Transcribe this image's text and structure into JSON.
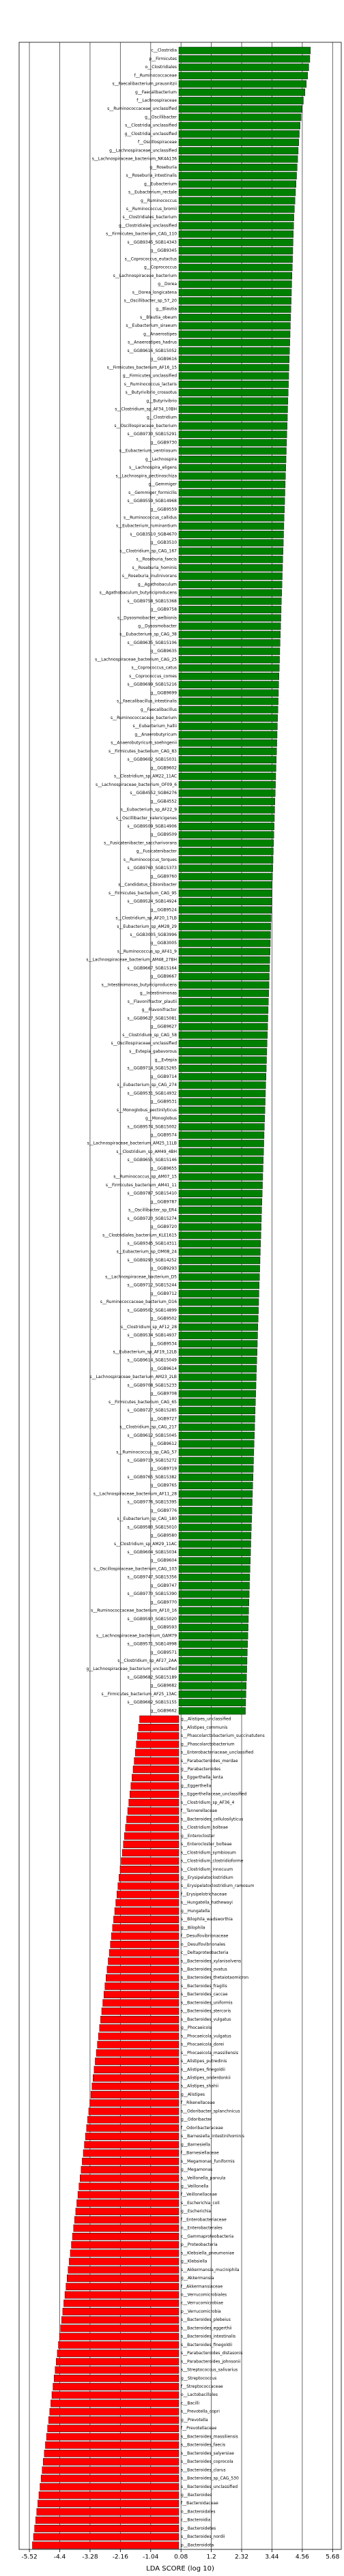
{
  "chart_data": {
    "type": "barh",
    "xlabel": "LDA SCORE (log 10)",
    "xlim": [
      -5.9,
      6.0
    ],
    "xticks": [
      -5.52,
      -4.4,
      -3.28,
      -2.16,
      -1.04,
      0.08,
      1.2,
      2.32,
      3.44,
      4.56,
      5.68
    ],
    "grid": true,
    "color_positive": "#008000",
    "color_negative": "#ff0000",
    "categories": [
      "c__Clostridia",
      "p__Firmicutes",
      "o__Clostridiales",
      "f__Ruminococcaceae",
      "s__Faecalibacterium_prausnitzii",
      "g__Faecalibacterium",
      "f__Lachnospiraceae",
      "s__Ruminococcaceae_unclassified",
      "g__Oscillibacter",
      "s__Clostridia_unclassified",
      "g__Clostridia_unclassified",
      "f__Oscillospiraceae",
      "g__Lachnospiraceae_unclassified",
      "s__Lachnospiraceae_bacterium_NK4A136",
      "g__Roseburia",
      "s__Roseburia_intestinalis",
      "g__Eubacterium",
      "s__Eubacterium_rectale",
      "g__Ruminococcus",
      "s__Ruminococcus_bromii",
      "s__Clostridiales_bacterium",
      "g__Clostridiales_unclassified",
      "s__Firmicutes_bacterium_CAG_110",
      "s__GGB9345_SGB14343",
      "g__GGB9345",
      "s__Coprococcus_eutactus",
      "g__Coprococcus",
      "s__Lachnospiraceae_bacterium",
      "g__Dorea",
      "s__Dorea_longicatena",
      "s__Oscillibacter_sp_57_20",
      "g__Blautia",
      "s__Blautia_obeum",
      "s__Eubacterium_siraeum",
      "g__Anaerostipes",
      "s__Anaerostipes_hadrus",
      "s__GGB9616_SGB15052",
      "g__GGB9616",
      "s__Firmicutes_bacterium_AF16_15",
      "g__Firmicutes_unclassified",
      "s__Ruminococcus_lactaris",
      "s__Butyrivibrio_crossotus",
      "g__Butyrivibrio",
      "s__Clostridium_sp_AF34_10BH",
      "g__Clostridium",
      "s__Oscillospiraceae_bacterium",
      "s__GGB9730_SGB15291",
      "g__GGB9730",
      "s__Eubacterium_ventriosum",
      "g__Lachnospira",
      "s__Lachnospira_eligens",
      "s__Lachnospira_pectinoschiza",
      "g__Gemmiger",
      "s__Gemmiger_formicilis",
      "s__GGB9559_SGB14968",
      "g__GGB9559",
      "s__Ruminococcus_callidus",
      "s__Eubacterium_ruminantium",
      "s__GGB3510_SGB4670",
      "g__GGB3510",
      "s__Clostridium_sp_CAG_167",
      "s__Roseburia_faecis",
      "s__Roseburia_hominis",
      "s__Roseburia_inulinivorans",
      "g__Agathobaculum",
      "s__Agathobaculum_butyriciproducens",
      "s__GGB9758_SGB15368",
      "g__GGB9758",
      "s__Dysosmobacter_welbionis",
      "g__Dysosmobacter",
      "s__Eubacterium_sp_CAG_38",
      "s__GGB9635_SGB15106",
      "g__GGB9635",
      "s__Lachnospiraceae_bacterium_CAG_25",
      "s__Coprococcus_catus",
      "s__Coprococcus_comes",
      "s__GGB9699_SGB15216",
      "g__GGB9699",
      "s__Faecalibacillus_intestinalis",
      "g__Faecalibacillus",
      "s__Ruminococcaceae_bacterium",
      "s__Eubacterium_hallii",
      "g__Anaerobutyricum",
      "s__Anaerobutyricum_soehngenii",
      "s__Firmicutes_bacterium_CAG_83",
      "s__GGB9602_SGB15031",
      "g__GGB9602",
      "s__Clostridium_sp_AM22_11AC",
      "s__Lachnospiraceae_bacterium_OF09_6",
      "s__GGB4552_SGB6276",
      "g__GGB4552",
      "s__Eubacterium_sp_AF22_9",
      "s__Oscillibacter_valericigenes",
      "s__GGB9509_SGB14906",
      "g__GGB9509",
      "s__Fusicatenibacter_saccharivorans",
      "g__Fusicatenibacter",
      "s__Ruminococcus_torques",
      "s__GGB9760_SGB15373",
      "g__GGB9760",
      "s__Candidatus_Cibionibacter",
      "s__Firmicutes_bacterium_CAG_95",
      "s__GGB9524_SGB14924",
      "g__GGB9524",
      "s__Clostridium_sp_AF20_17LB",
      "s__Eubacterium_sp_AM28_29",
      "s__GGB3005_SGB3996",
      "g__GGB3005",
      "s__Ruminococcus_sp_AF41_9",
      "s__Lachnospiraceae_bacterium_AM48_27BH",
      "s__GGB9667_SGB15164",
      "g__GGB9667",
      "s__Intestinimonas_butyriciproducens",
      "g__Intestinimonas",
      "s__Flavonifractor_plautii",
      "g__Flavonifractor",
      "s__GGB9627_SGB15081",
      "g__GGB9627",
      "s__Clostridium_sp_CAG_58",
      "s__Oscillospiraceae_unclassified",
      "s__Evtepia_gabavorous",
      "g__Evtepia",
      "s__GGB9714_SGB15265",
      "g__GGB9714",
      "s__Eubacterium_sp_CAG_274",
      "s__GGB9531_SGB14932",
      "g__GGB9531",
      "s__Monoglobus_pectinilyticus",
      "g__Monoglobus",
      "s__GGB9574_SGB15002",
      "g__GGB9574",
      "s__Lachnospiraceae_bacterium_AM25_11LB",
      "s__Clostridium_sp_AM49_4BH",
      "s__GGB9655_SGB15146",
      "g__GGB9655",
      "s__Ruminococcus_sp_AM07_15",
      "s__Firmicutes_bacterium_AM41_11",
      "s__GGB9787_SGB15410",
      "g__GGB9787",
      "s__Oscillibacter_sp_ER4",
      "s__GGB9720_SGB15274",
      "g__GGB9720",
      "s__Clostridiales_bacterium_KLE1615",
      "s__GGB9345_SGB14311",
      "s__Eubacterium_sp_OM08_24",
      "s__GGB9293_SGB14252",
      "g__GGB9293",
      "s__Lachnospiraceae_bacterium_D5",
      "s__GGB9712_SGB15244",
      "g__GGB9712",
      "s__Ruminococcaceae_bacterium_D16",
      "s__GGB9502_SGB14899",
      "g__GGB9502",
      "s__Clostridium_sp_AF12_28",
      "s__GGB9534_SGB14937",
      "g__GGB9534",
      "s__Eubacterium_sp_AF19_12LB",
      "s__GGB9614_SGB15049",
      "g__GGB9614",
      "s__Lachnospiraceae_bacterium_AM23_2LB",
      "s__GGB9708_SGB15233",
      "g__GGB9708",
      "s__Firmicutes_bacterium_CAG_65",
      "s__GGB9727_SGB15285",
      "g__GGB9727",
      "s__Clostridium_sp_CAG_217",
      "s__GGB9612_SGB15045",
      "g__GGB9612",
      "s__Ruminococcus_sp_CAG_57",
      "s__GGB9719_SGB15272",
      "g__GGB9719",
      "s__GGB9765_SGB15382",
      "g__GGB9765",
      "s__Lachnospiraceae_bacterium_AF11_28",
      "s__GGB9776_SGB15395",
      "g__GGB9776",
      "s__Eubacterium_sp_CAG_180",
      "s__GGB9580_SGB15010",
      "g__GGB9580",
      "s__Clostridium_sp_AM29_11AC",
      "s__GGB9604_SGB15034",
      "g__GGB9604",
      "s__Oscillospiraceae_bacterium_CAG_103",
      "s__GGB9747_SGB15356",
      "g__GGB9747",
      "s__GGB9770_SGB15390",
      "g__GGB9770",
      "s__Ruminococcaceae_bacterium_AF10_16",
      "s__GGB9593_SGB15020",
      "g__GGB9593",
      "s__Lachnospiraceae_bacterium_GAM79",
      "s__GGB9571_SGB14998",
      "g__GGB9571",
      "s__Clostridium_sp_AF27_2AA",
      "g__Lachnospiraceae_bacterium_unclassified",
      "s__GGB9682_SGB15189",
      "g__GGB9682",
      "s__Firmicutes_bacterium_AF25_13AC",
      "s__GGB9662_SGB15155",
      "g__GGB9662",
      "g__Alistipes_unclassified",
      "s__Alistipes_communis",
      "s__Phascolarctobacterium_succinatutens",
      "g__Phascolarctobacterium",
      "s__Enterobacteriaceae_unclassified",
      "s__Parabacteroides_merdae",
      "g__Parabacteroides",
      "s__Eggerthella_lenta",
      "g__Eggerthella",
      "s__Eggerthellaceae_unclassified",
      "s__Clostridium_sp_AF36_4",
      "f__Tannerellaceae",
      "s__Bacteroides_cellulosilyticus",
      "s__Clostridium_bolteae",
      "g__Enterocloster",
      "s__Enterocloster_bolteae",
      "s__Clostridium_symbiosum",
      "s__Clostridium_clostridioforme",
      "s__Clostridium_innocuum",
      "g__Erysipelatoclostridium",
      "s__Erysipelatoclostridium_ramosum",
      "f__Erysipelotrichaceae",
      "s__Hungatella_hathewayi",
      "g__Hungatella",
      "s__Bilophila_wadsworthia",
      "g__Bilophila",
      "f__Desulfovibrionaceae",
      "o__Desulfovibrionales",
      "c__Deltaproteobacteria",
      "s__Bacteroides_xylanisolvens",
      "s__Bacteroides_ovatus",
      "s__Bacteroides_thetaiotaomicron",
      "s__Bacteroides_fragilis",
      "s__Bacteroides_caccae",
      "s__Bacteroides_uniformis",
      "s__Bacteroides_stercoris",
      "s__Bacteroides_vulgatus",
      "g__Phocaeicola",
      "s__Phocaeicola_vulgatus",
      "s__Phocaeicola_dorei",
      "s__Phocaeicola_massiliensis",
      "s__Alistipes_putredinis",
      "s__Alistipes_finegoldii",
      "s__Alistipes_onderdonkii",
      "s__Alistipes_shahii",
      "g__Alistipes",
      "f__Rikenellaceae",
      "s__Odoribacter_splanchnicus",
      "g__Odoribacter",
      "f__Odoribacteraceae",
      "s__Barnesiella_intestinihominis",
      "g__Barnesiella",
      "f__Barnesiellaceae",
      "s__Megamonas_funiformis",
      "g__Megamonas",
      "s__Veillonella_parvula",
      "g__Veillonella",
      "f__Veillonellaceae",
      "s__Escherichia_coli",
      "g__Escherichia",
      "f__Enterobacteriaceae",
      "o__Enterobacterales",
      "c__Gammaproteobacteria",
      "p__Proteobacteria",
      "s__Klebsiella_pneumoniae",
      "g__Klebsiella",
      "s__Akkermansia_muciniphila",
      "g__Akkermansia",
      "f__Akkermansiaceae",
      "o__Verrucomicrobiales",
      "c__Verrucomicrobiae",
      "p__Verrucomicrobia",
      "s__Bacteroides_plebeius",
      "s__Bacteroides_eggerthii",
      "s__Bacteroides_intestinalis",
      "s__Bacteroides_finegoldii",
      "s__Parabacteroides_distasonis",
      "s__Parabacteroides_johnsonii",
      "s__Streptococcus_salivarius",
      "g__Streptococcus",
      "f__Streptococcaceae",
      "o__Lactobacillales",
      "c__Bacilli",
      "s__Prevotella_copri",
      "g__Prevotella",
      "f__Prevotellaceae",
      "s__Bacteroides_massiliensis",
      "s__Bacteroides_faecis",
      "s__Bacteroides_salyersiae",
      "s__Bacteroides_coprocola",
      "s__Bacteroides_clarus",
      "s__Bacteroides_sp_CAG_530",
      "s__Bacteroides_unclassified",
      "g__Bacteroides",
      "f__Bacteroidaceae",
      "o__Bacteroidales",
      "c__Bacteroidia",
      "p__Bacteroidetes",
      "s__Bacteroides_nordii",
      "p__Bacteroidota"
    ],
    "values": [
      4.86,
      4.84,
      4.8,
      4.76,
      4.71,
      4.66,
      4.6,
      4.55,
      4.52,
      4.48,
      4.45,
      4.43,
      4.41,
      4.39,
      4.37,
      4.35,
      4.33,
      4.31,
      4.29,
      4.27,
      4.25,
      4.24,
      4.23,
      4.22,
      4.21,
      4.2,
      4.19,
      4.18,
      4.17,
      4.16,
      4.15,
      4.14,
      4.13,
      4.12,
      4.11,
      4.1,
      4.09,
      4.08,
      4.07,
      4.06,
      4.05,
      4.04,
      4.03,
      4.02,
      4.01,
      4.0,
      3.99,
      3.98,
      3.97,
      3.96,
      3.95,
      3.94,
      3.93,
      3.92,
      3.91,
      3.9,
      3.89,
      3.88,
      3.87,
      3.86,
      3.85,
      3.84,
      3.83,
      3.82,
      3.81,
      3.8,
      3.79,
      3.78,
      3.77,
      3.76,
      3.75,
      3.74,
      3.73,
      3.72,
      3.71,
      3.7,
      3.69,
      3.68,
      3.67,
      3.66,
      3.65,
      3.64,
      3.63,
      3.62,
      3.61,
      3.6,
      3.59,
      3.58,
      3.57,
      3.56,
      3.55,
      3.54,
      3.53,
      3.52,
      3.51,
      3.5,
      3.49,
      3.48,
      3.47,
      3.46,
      3.45,
      3.44,
      3.43,
      3.42,
      3.41,
      3.4,
      3.39,
      3.38,
      3.37,
      3.36,
      3.35,
      3.34,
      3.33,
      3.32,
      3.31,
      3.3,
      3.29,
      3.28,
      3.27,
      3.26,
      3.25,
      3.24,
      3.23,
      3.22,
      3.21,
      3.2,
      3.19,
      3.18,
      3.17,
      3.16,
      3.15,
      3.14,
      3.13,
      3.12,
      3.11,
      3.1,
      3.09,
      3.08,
      3.07,
      3.06,
      3.05,
      3.04,
      3.03,
      3.02,
      3.01,
      3.0,
      2.99,
      2.98,
      2.97,
      2.96,
      2.95,
      2.94,
      2.93,
      2.92,
      2.91,
      2.9,
      2.89,
      2.88,
      2.87,
      2.86,
      2.85,
      2.84,
      2.83,
      2.82,
      2.81,
      2.8,
      2.79,
      2.78,
      2.77,
      2.76,
      2.75,
      2.74,
      2.73,
      2.72,
      2.71,
      2.7,
      2.69,
      2.68,
      2.67,
      2.66,
      2.65,
      2.64,
      2.63,
      2.62,
      2.61,
      2.6,
      2.59,
      2.58,
      2.57,
      2.56,
      2.55,
      2.54,
      2.53,
      2.52,
      2.51,
      2.5,
      2.49,
      2.48,
      2.47,
      2.46,
      -1.45,
      -1.49,
      -1.53,
      -1.57,
      -1.61,
      -1.65,
      -1.69,
      -1.73,
      -1.77,
      -1.81,
      -1.85,
      -1.89,
      -1.93,
      -1.97,
      -2.01,
      -2.05,
      -2.09,
      -2.13,
      -2.17,
      -2.21,
      -2.25,
      -2.29,
      -2.33,
      -2.37,
      -2.41,
      -2.45,
      -2.49,
      -2.53,
      -2.57,
      -2.61,
      -2.65,
      -2.69,
      -2.73,
      -2.77,
      -2.81,
      -2.85,
      -2.89,
      -2.93,
      -2.97,
      -3.01,
      -3.05,
      -3.09,
      -3.13,
      -3.17,
      -3.21,
      -3.25,
      -3.29,
      -3.33,
      -3.37,
      -3.41,
      -3.45,
      -3.49,
      -3.53,
      -3.57,
      -3.61,
      -3.65,
      -3.69,
      -3.73,
      -3.77,
      -3.81,
      -3.85,
      -3.89,
      -3.93,
      -3.97,
      -4.01,
      -4.05,
      -4.09,
      -4.13,
      -4.17,
      -4.21,
      -4.25,
      -4.29,
      -4.33,
      -4.37,
      -4.41,
      -4.45,
      -4.49,
      -4.53,
      -4.57,
      -4.61,
      -4.65,
      -4.69,
      -4.73,
      -4.77,
      -4.81,
      -4.85,
      -4.89,
      -4.93,
      -4.97,
      -5.01,
      -5.05,
      -5.09,
      -5.13,
      -5.17,
      -5.21,
      -5.25,
      -5.29,
      -5.33,
      -5.37,
      -5.41
    ]
  }
}
